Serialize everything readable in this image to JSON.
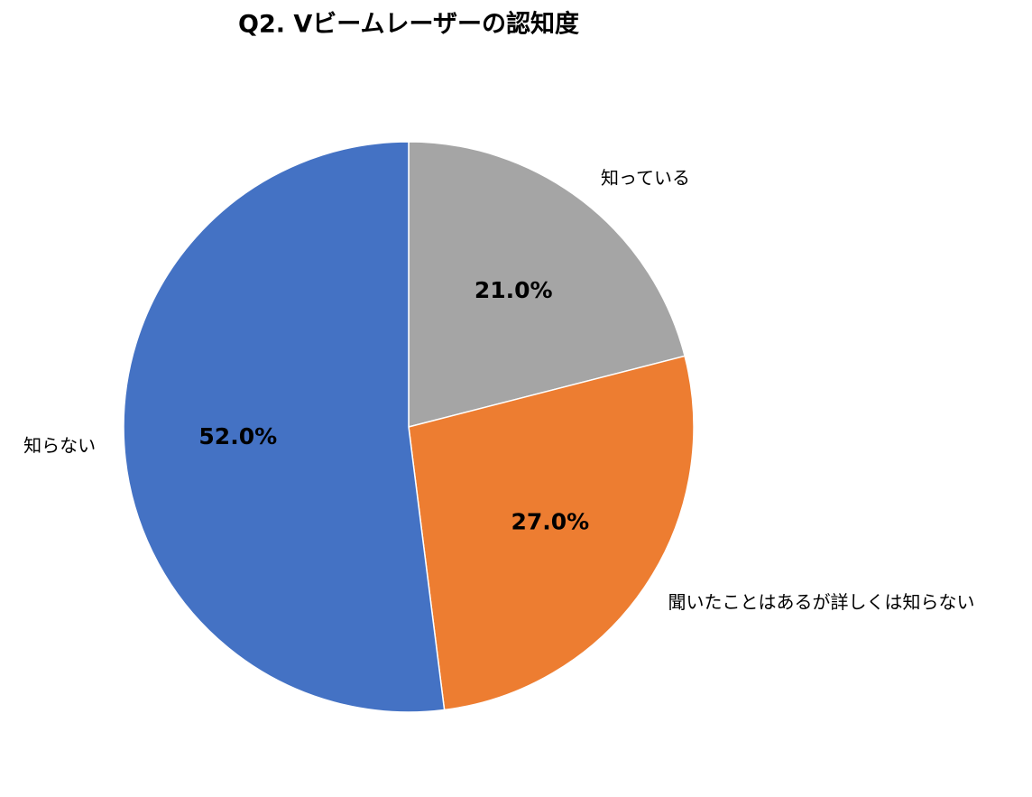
{
  "chart_data": {
    "type": "pie",
    "title": "Q2. Vビームレーザーの認知度",
    "categories": [
      "知っている",
      "聞いたことはあるが詳しくは知らない",
      "知らない"
    ],
    "values": [
      21,
      27,
      52
    ],
    "value_labels": [
      "21.0%",
      "27.0%",
      "52.0%"
    ],
    "colors": [
      "#a5a5a5",
      "#ed7d31",
      "#4472c4"
    ]
  }
}
